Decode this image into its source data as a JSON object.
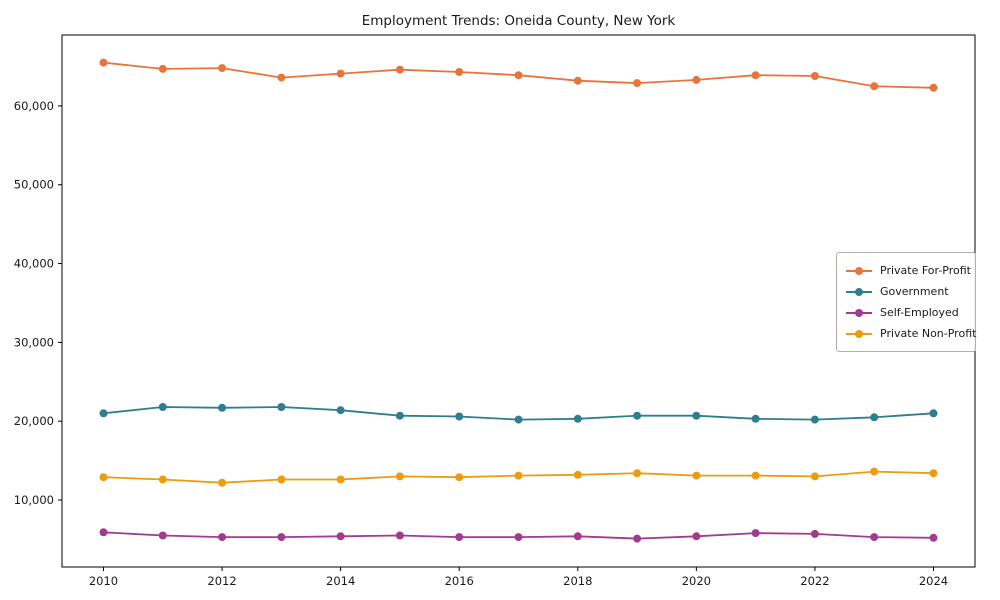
{
  "chart_data": {
    "type": "line",
    "title": "Employment Trends: Oneida County, New York",
    "xlabel": "",
    "ylabel": "",
    "grid": false,
    "legend_position": "center right",
    "xlim": [
      2009.3,
      2024.7
    ],
    "ylim": [
      1500,
      69000
    ],
    "x": [
      2010,
      2011,
      2012,
      2013,
      2014,
      2015,
      2016,
      2017,
      2018,
      2019,
      2020,
      2021,
      2022,
      2023,
      2024
    ],
    "xticks": [
      {
        "value": 2010,
        "label": "2010"
      },
      {
        "value": 2012,
        "label": "2012"
      },
      {
        "value": 2014,
        "label": "2014"
      },
      {
        "value": 2016,
        "label": "2016"
      },
      {
        "value": 2018,
        "label": "2018"
      },
      {
        "value": 2020,
        "label": "2020"
      },
      {
        "value": 2022,
        "label": "2022"
      },
      {
        "value": 2024,
        "label": "2024"
      }
    ],
    "yticks": [
      {
        "value": 10000,
        "label": "10,000"
      },
      {
        "value": 20000,
        "label": "20,000"
      },
      {
        "value": 30000,
        "label": "30,000"
      },
      {
        "value": 40000,
        "label": "40,000"
      },
      {
        "value": 50000,
        "label": "50,000"
      },
      {
        "value": 60000,
        "label": "60,000"
      }
    ],
    "series": [
      {
        "name": "Private For-Profit",
        "color": "#e8743b",
        "values": [
          65500,
          64700,
          64800,
          63600,
          64100,
          64600,
          64300,
          63900,
          63200,
          62900,
          63300,
          63900,
          63800,
          62500,
          62300
        ]
      },
      {
        "name": "Government",
        "color": "#2f7e8f",
        "values": [
          21000,
          21800,
          21700,
          21800,
          21400,
          20700,
          20600,
          20200,
          20300,
          20700,
          20700,
          20300,
          20200,
          20500,
          21000
        ]
      },
      {
        "name": "Self-Employed",
        "color": "#a23b8f",
        "values": [
          5900,
          5500,
          5300,
          5300,
          5400,
          5500,
          5300,
          5300,
          5400,
          5100,
          5400,
          5800,
          5700,
          5300,
          5200
        ]
      },
      {
        "name": "Private Non-Profit",
        "color": "#eb9c0f",
        "values": [
          12900,
          12600,
          12200,
          12600,
          12600,
          13000,
          12900,
          13100,
          13200,
          13400,
          13100,
          13100,
          13000,
          13600,
          13400
        ]
      }
    ]
  }
}
